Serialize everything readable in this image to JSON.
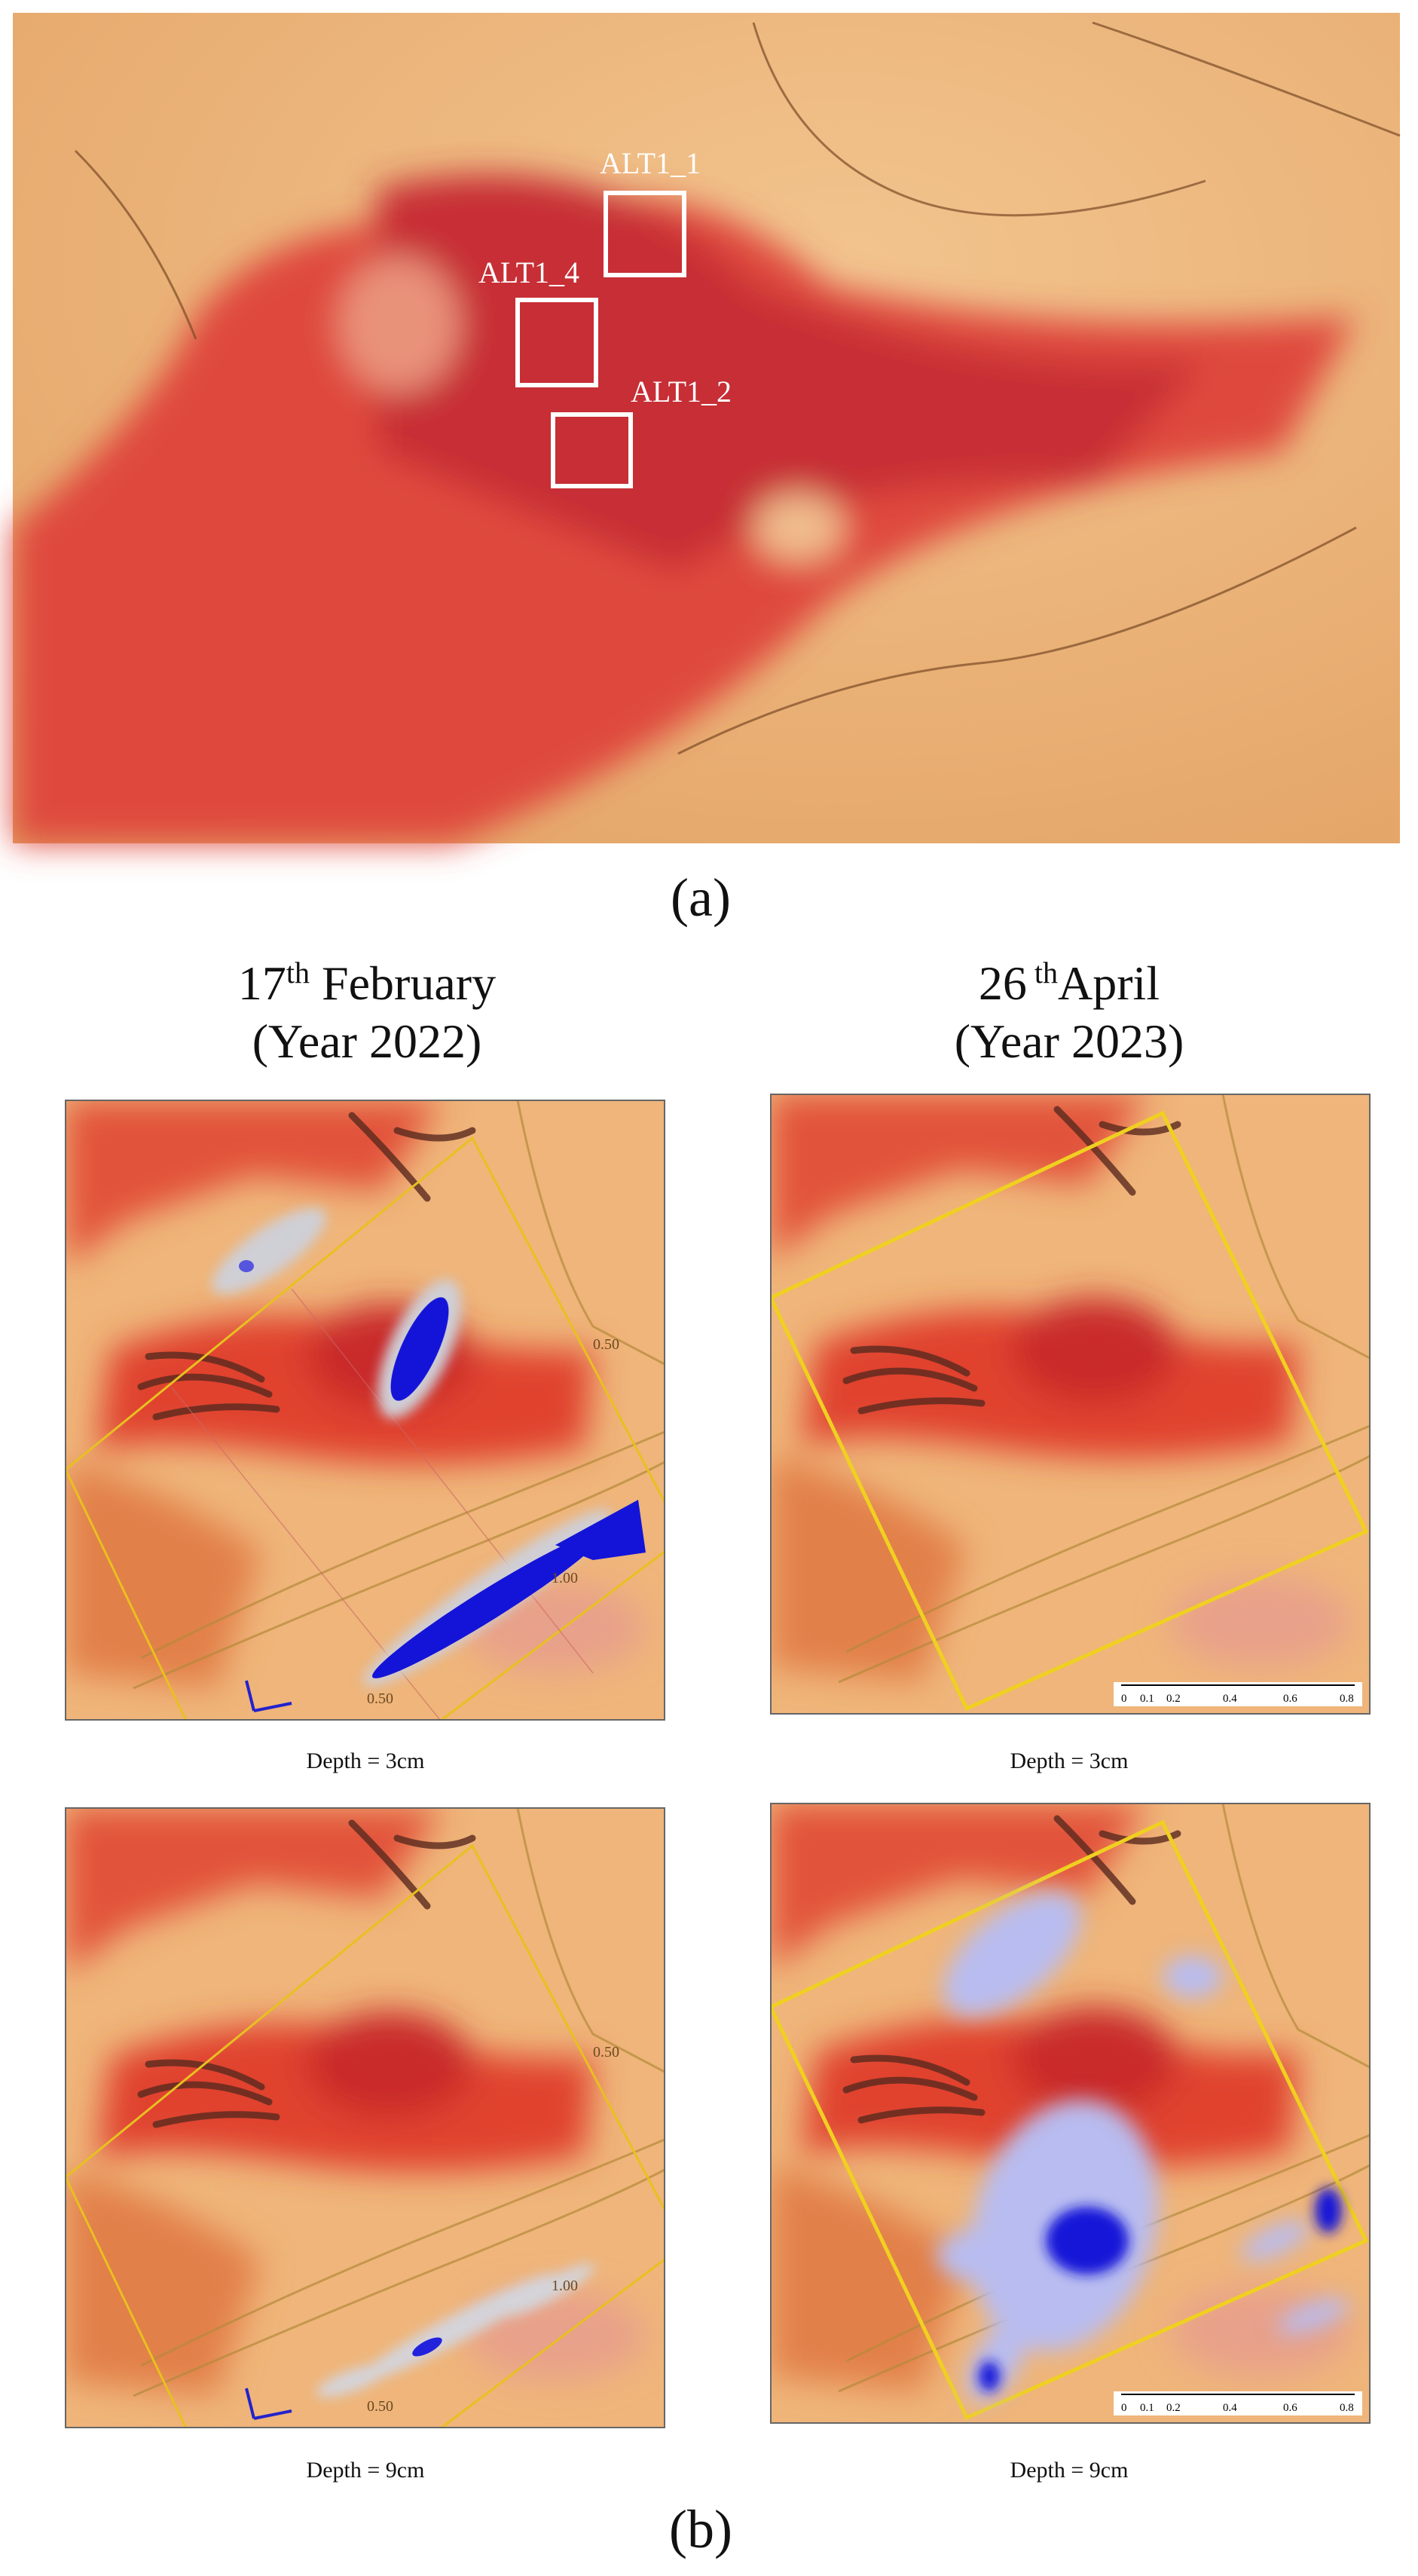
{
  "panel_a": {
    "boxes": [
      {
        "label": "ALT1_1"
      },
      {
        "label": "ALT1_4"
      },
      {
        "label": "ALT1_2"
      }
    ],
    "caption": "(a)"
  },
  "panel_b": {
    "caption": "(b)",
    "columns": [
      {
        "date": "17",
        "suffix": "th",
        "month": " February",
        "year": "(Year 2022)"
      },
      {
        "date": "26",
        "suffix": " th",
        "month": "April",
        "year": "(Year 2023)"
      }
    ],
    "images": [
      {
        "caption": "Depth = 3cm",
        "grid_labels": [
          "0.50",
          "1.00",
          "0.50"
        ]
      },
      {
        "caption": "Depth = 3cm",
        "scale_labels": [
          "0",
          "0.1",
          "0.2",
          "0.4",
          "0.6",
          "0.8"
        ]
      },
      {
        "caption": "Depth = 9cm",
        "grid_labels": [
          "0.50",
          "1.00",
          "0.50"
        ]
      },
      {
        "caption": "Depth = 9cm",
        "scale_labels": [
          "0",
          "0.1",
          "0.2",
          "0.4",
          "0.6",
          "0.8"
        ]
      }
    ]
  }
}
